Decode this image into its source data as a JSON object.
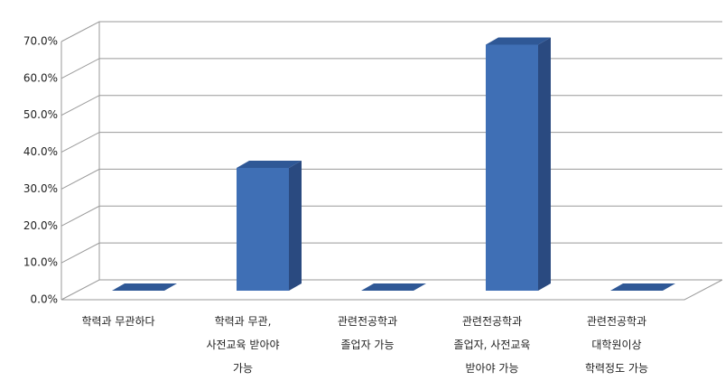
{
  "chart_data": {
    "type": "bar3d",
    "categories": [
      "학력과 무관하다",
      "학력과 무관,\n사전교육 받아야\n가능",
      "관련전공학과\n졸업자 가능",
      "관련전공학과\n졸업자, 사전교육\n받아야 가능",
      "관련전공학과\n대학원이상\n학력정도 가능"
    ],
    "values": [
      0,
      33.3,
      0,
      66.7,
      0
    ],
    "color": "#3f6fb5",
    "ylim": [
      0,
      70
    ],
    "yticks": [
      {
        "value": 0,
        "label": "0.0%"
      },
      {
        "value": 10,
        "label": "10.0%"
      },
      {
        "value": 20,
        "label": "20.0%"
      },
      {
        "value": 30,
        "label": "30.0%"
      },
      {
        "value": 40,
        "label": "40.0%"
      },
      {
        "value": 50,
        "label": "50.0%"
      },
      {
        "value": 60,
        "label": "60.0%"
      },
      {
        "value": 70,
        "label": "70.0%"
      }
    ],
    "grid": true
  }
}
